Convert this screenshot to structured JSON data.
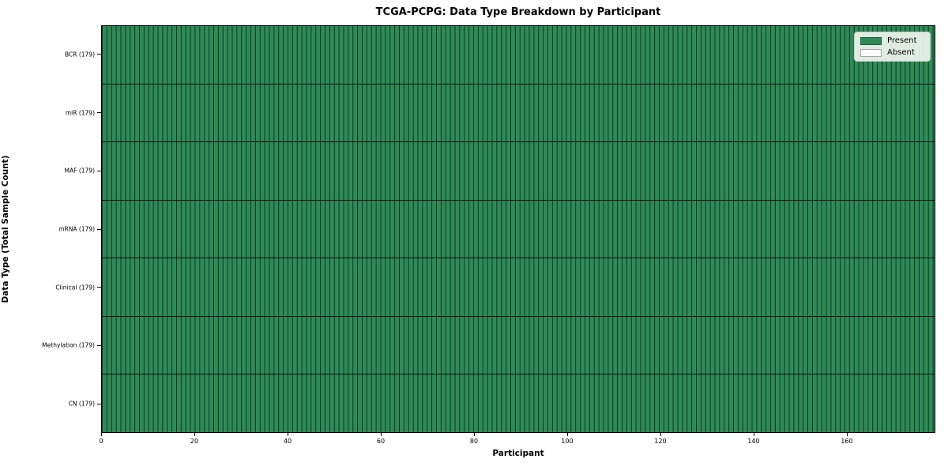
{
  "chart_data": {
    "type": "heatmap",
    "title": "TCGA-PCPG: Data Type Breakdown by Participant",
    "xlabel": "Participant",
    "ylabel": "Data Type (Total Sample Count)",
    "xlim": [
      0,
      179
    ],
    "x_ticks": [
      0,
      20,
      40,
      60,
      80,
      100,
      120,
      140,
      160
    ],
    "n_participants": 179,
    "grid": "cell borders only",
    "legend_position": "upper right",
    "rows": [
      {
        "label": "BCR (179)",
        "data_type": "BCR",
        "total_samples": 179,
        "present_count": 179,
        "absent_count": 0
      },
      {
        "label": "miR (179)",
        "data_type": "miR",
        "total_samples": 179,
        "present_count": 179,
        "absent_count": 0
      },
      {
        "label": "MAF (179)",
        "data_type": "MAF",
        "total_samples": 179,
        "present_count": 179,
        "absent_count": 0
      },
      {
        "label": "mRNA (179)",
        "data_type": "mRNA",
        "total_samples": 179,
        "present_count": 179,
        "absent_count": 0
      },
      {
        "label": "Clinical (179)",
        "data_type": "Clinical",
        "total_samples": 179,
        "present_count": 179,
        "absent_count": 0
      },
      {
        "label": "Methylation (179)",
        "data_type": "Methylation",
        "total_samples": 179,
        "present_count": 179,
        "absent_count": 0
      },
      {
        "label": "CN (179)",
        "data_type": "CN",
        "total_samples": 179,
        "present_count": 179,
        "absent_count": 0
      }
    ],
    "cell_note": "every participant cell is Present (green) in all 7 rows"
  },
  "legend": {
    "entries": [
      {
        "label": "Present",
        "color": "#2e8b57"
      },
      {
        "label": "Absent",
        "color": "#ffffff"
      }
    ]
  },
  "colors": {
    "present": "#2e8b57",
    "absent": "#ffffff",
    "cell_border": "rgba(0,0,0,0.62)",
    "row_separator": "rgba(0,0,0,0.85)",
    "plot_border": "#000000",
    "background": "#ffffff"
  }
}
